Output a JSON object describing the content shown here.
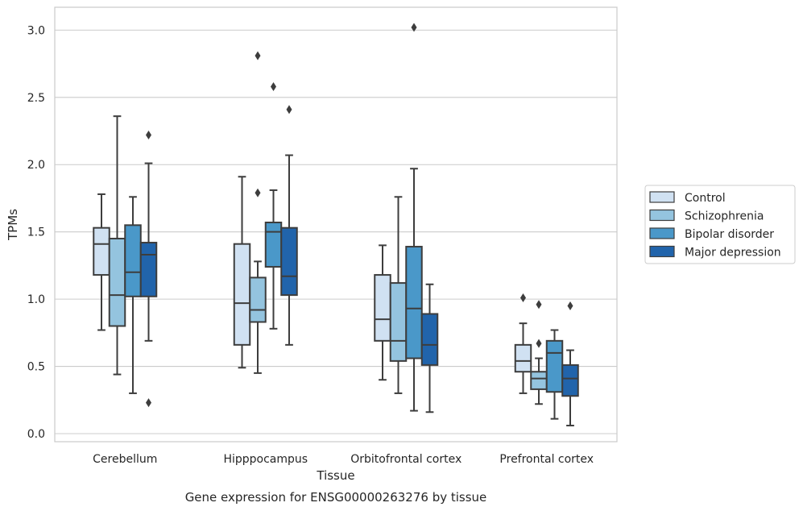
{
  "chart_data": {
    "type": "boxplot",
    "xlabel": "Tissue",
    "ylabel": "TPMs",
    "caption": "Gene expression for ENSG00000263276 by tissue",
    "ylim": [
      -0.06,
      3.17
    ],
    "yticks": [
      0.0,
      0.5,
      1.0,
      1.5,
      2.0,
      2.5,
      3.0
    ],
    "ytick_labels": [
      "0.0",
      "0.5",
      "1.0",
      "1.5",
      "2.0",
      "2.5",
      "3.0"
    ],
    "grid": "horizontal",
    "legend_position": "right",
    "categories": [
      "Cerebellum",
      "Hipppocampus",
      "Orbitofrontal cortex",
      "Prefrontal cortex"
    ],
    "series": [
      {
        "name": "Control",
        "color": "#d0e1f2",
        "boxes": [
          {
            "whislo": 0.77,
            "q1": 1.18,
            "med": 1.41,
            "q3": 1.53,
            "whishi": 1.78,
            "fliers": []
          },
          {
            "whislo": 0.49,
            "q1": 0.66,
            "med": 0.97,
            "q3": 1.41,
            "whishi": 1.91,
            "fliers": []
          },
          {
            "whislo": 0.4,
            "q1": 0.69,
            "med": 0.85,
            "q3": 1.18,
            "whishi": 1.4,
            "fliers": []
          },
          {
            "whislo": 0.3,
            "q1": 0.46,
            "med": 0.54,
            "q3": 0.66,
            "whishi": 0.82,
            "fliers": [
              1.01
            ]
          }
        ]
      },
      {
        "name": "Schizophrenia",
        "color": "#94c4df",
        "boxes": [
          {
            "whislo": 0.44,
            "q1": 0.8,
            "med": 1.03,
            "q3": 1.45,
            "whishi": 2.36,
            "fliers": []
          },
          {
            "whislo": 0.45,
            "q1": 0.83,
            "med": 0.92,
            "q3": 1.16,
            "whishi": 1.28,
            "fliers": [
              1.79,
              2.81
            ]
          },
          {
            "whislo": 0.3,
            "q1": 0.54,
            "med": 0.69,
            "q3": 1.12,
            "whishi": 1.76,
            "fliers": []
          },
          {
            "whislo": 0.22,
            "q1": 0.33,
            "med": 0.41,
            "q3": 0.46,
            "whishi": 0.56,
            "fliers": [
              0.67,
              0.96
            ]
          }
        ]
      },
      {
        "name": "Bipolar disorder",
        "color": "#4a98c9",
        "boxes": [
          {
            "whislo": 0.3,
            "q1": 1.02,
            "med": 1.2,
            "q3": 1.55,
            "whishi": 1.76,
            "fliers": []
          },
          {
            "whislo": 0.78,
            "q1": 1.24,
            "med": 1.5,
            "q3": 1.57,
            "whishi": 1.81,
            "fliers": [
              2.58
            ]
          },
          {
            "whislo": 0.17,
            "q1": 0.56,
            "med": 0.93,
            "q3": 1.39,
            "whishi": 1.97,
            "fliers": [
              3.02
            ]
          },
          {
            "whislo": 0.11,
            "q1": 0.31,
            "med": 0.6,
            "q3": 0.69,
            "whishi": 0.77,
            "fliers": []
          }
        ]
      },
      {
        "name": "Major depression",
        "color": "#2164ab",
        "boxes": [
          {
            "whislo": 0.69,
            "q1": 1.02,
            "med": 1.33,
            "q3": 1.42,
            "whishi": 2.01,
            "fliers": [
              0.23,
              2.22
            ]
          },
          {
            "whislo": 0.66,
            "q1": 1.03,
            "med": 1.17,
            "q3": 1.53,
            "whishi": 2.07,
            "fliers": [
              2.41
            ]
          },
          {
            "whislo": 0.16,
            "q1": 0.51,
            "med": 0.66,
            "q3": 0.89,
            "whishi": 1.11,
            "fliers": []
          },
          {
            "whislo": 0.06,
            "q1": 0.28,
            "med": 0.41,
            "q3": 0.51,
            "whishi": 0.62,
            "fliers": [
              0.95
            ]
          }
        ]
      }
    ]
  }
}
